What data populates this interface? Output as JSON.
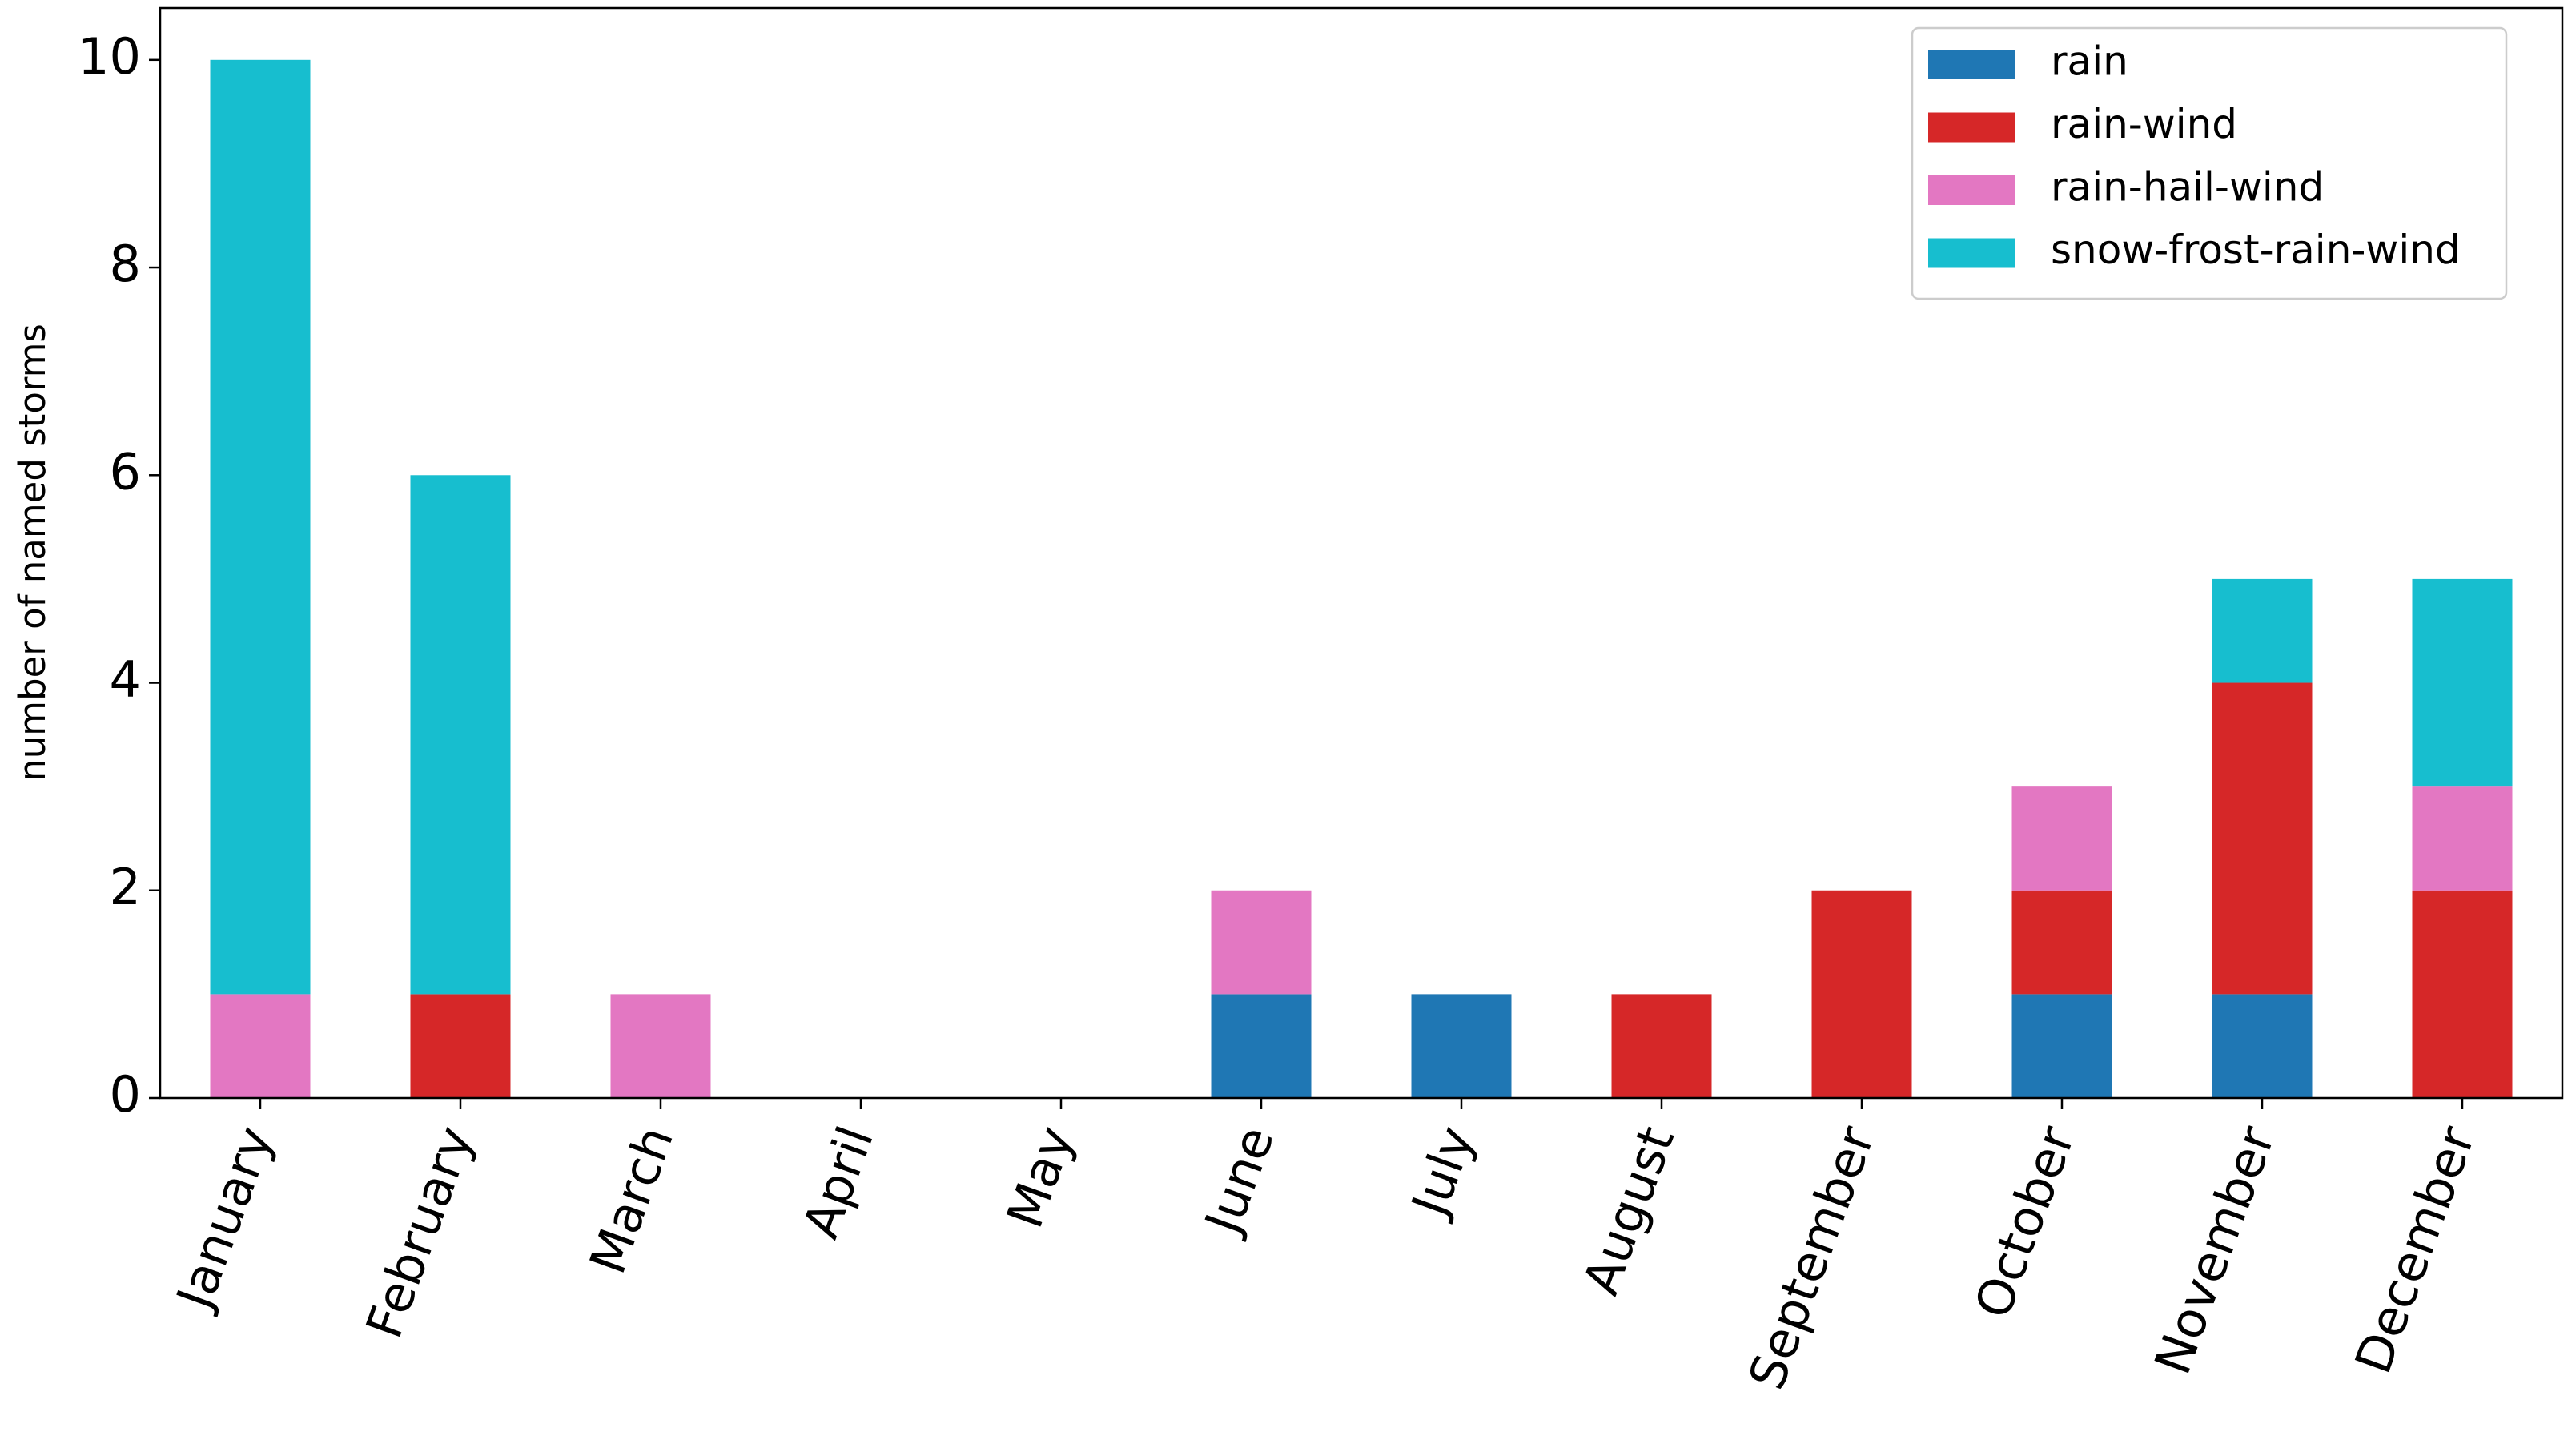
{
  "chart_data": {
    "type": "stacked-bar",
    "y_label": "number of named storms",
    "categories": [
      "January",
      "February",
      "March",
      "April",
      "May",
      "June",
      "July",
      "August",
      "September",
      "October",
      "November",
      "December"
    ],
    "series": [
      {
        "name": "rain",
        "color": "#1f77b4",
        "values": [
          0,
          0,
          0,
          0,
          0,
          1,
          1,
          0,
          0,
          1,
          1,
          0
        ]
      },
      {
        "name": "rain-wind",
        "color": "#d62728",
        "values": [
          0,
          1,
          0,
          0,
          0,
          0,
          0,
          1,
          2,
          1,
          3,
          2
        ]
      },
      {
        "name": "rain-hail-wind",
        "color": "#e377c2",
        "values": [
          1,
          0,
          1,
          0,
          0,
          1,
          0,
          0,
          0,
          1,
          0,
          1
        ]
      },
      {
        "name": "snow-frost-rain-wind",
        "color": "#17becf",
        "values": [
          9,
          5,
          0,
          0,
          0,
          0,
          0,
          0,
          0,
          0,
          1,
          2
        ]
      }
    ],
    "ylim": [
      0,
      10.5
    ],
    "yticks": [
      0,
      2,
      4,
      6,
      8,
      10
    ],
    "legend": "upper right",
    "grid": false
  }
}
